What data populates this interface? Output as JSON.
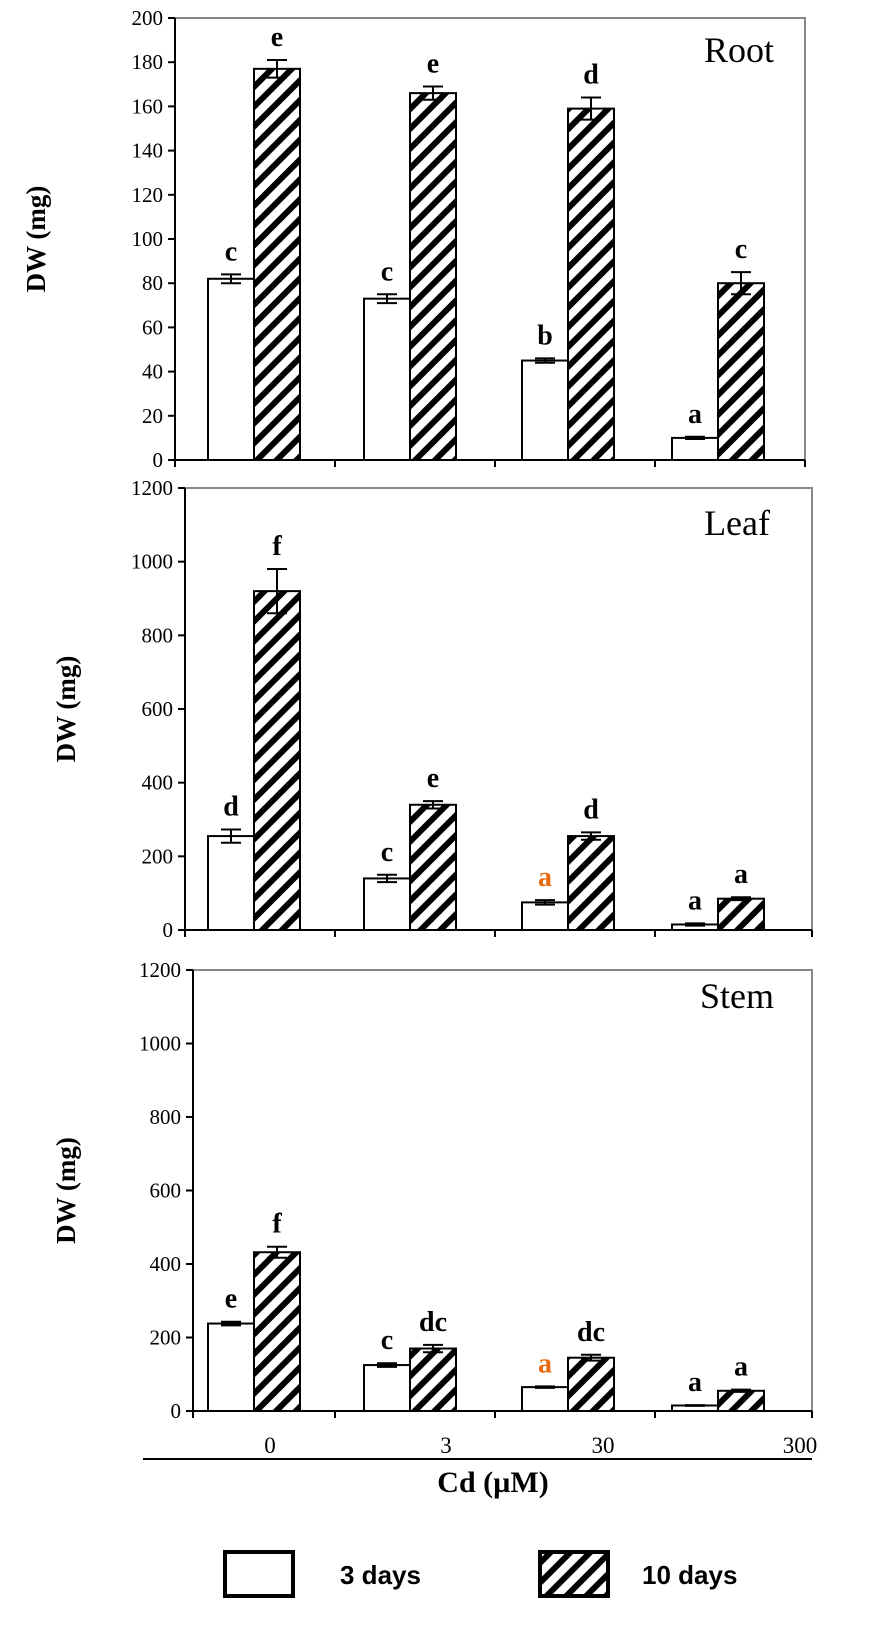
{
  "chart_data": [
    {
      "type": "bar",
      "title": "Root",
      "ylabel": "DW (mg)",
      "ylim": [
        0,
        200
      ],
      "yticks": [
        0,
        20,
        40,
        60,
        80,
        100,
        120,
        140,
        160,
        180,
        200
      ],
      "categories": [
        "0",
        "3",
        "30",
        "300"
      ],
      "series": [
        {
          "name": "3 days",
          "values": [
            82,
            73,
            45,
            10
          ],
          "errors": [
            2,
            2,
            1,
            0.5
          ],
          "letters": [
            "c",
            "c",
            "b",
            "a"
          ]
        },
        {
          "name": "10 days",
          "values": [
            177,
            166,
            159,
            80
          ],
          "errors": [
            4,
            3,
            5,
            5
          ],
          "letters": [
            "e",
            "e",
            "d",
            "c"
          ]
        }
      ]
    },
    {
      "type": "bar",
      "title": "Leaf",
      "ylabel": "DW (mg)",
      "ylim": [
        0,
        1200
      ],
      "yticks": [
        0,
        200,
        400,
        600,
        800,
        1000,
        1200
      ],
      "categories": [
        "0",
        "3",
        "30",
        "300"
      ],
      "series": [
        {
          "name": "3 days",
          "values": [
            255,
            140,
            75,
            15
          ],
          "errors": [
            18,
            10,
            6,
            3
          ],
          "letters": [
            "d",
            "c",
            "a",
            "a"
          ],
          "highlight": [
            false,
            false,
            true,
            false
          ]
        },
        {
          "name": "10 days",
          "values": [
            920,
            340,
            255,
            85
          ],
          "errors": [
            60,
            10,
            10,
            4
          ],
          "letters": [
            "f",
            "e",
            "d",
            "a"
          ]
        }
      ]
    },
    {
      "type": "bar",
      "title": "Stem",
      "ylabel": "DW (mg)",
      "ylim": [
        0,
        1200
      ],
      "yticks": [
        0,
        200,
        400,
        600,
        800,
        1000,
        1200
      ],
      "categories": [
        "0",
        "3",
        "30",
        "300"
      ],
      "xlabel": "Cd (µM)",
      "series": [
        {
          "name": "3 days",
          "values": [
            238,
            125,
            65,
            15
          ],
          "errors": [
            5,
            5,
            2,
            1
          ],
          "letters": [
            "e",
            "c",
            "a",
            "a"
          ],
          "highlight": [
            false,
            false,
            true,
            false
          ]
        },
        {
          "name": "10 days",
          "values": [
            432,
            170,
            145,
            55
          ],
          "errors": [
            15,
            10,
            8,
            3
          ],
          "letters": [
            "f",
            "dc",
            "dc",
            "a"
          ]
        }
      ]
    }
  ],
  "legend": [
    {
      "label": "3 days",
      "pattern": "open"
    },
    {
      "label": "10 days",
      "pattern": "hatched"
    }
  ],
  "colors": {
    "highlight_letter": "#e86a10",
    "bar_stroke": "#000000",
    "frame": "#888888"
  }
}
